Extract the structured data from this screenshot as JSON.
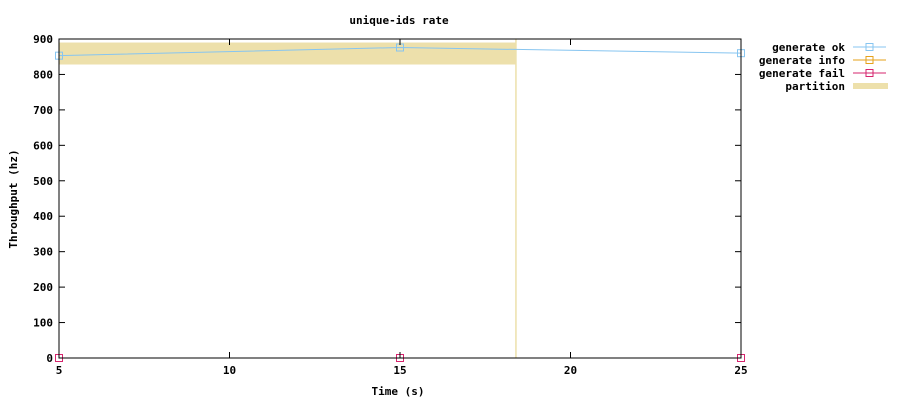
{
  "chart_data": {
    "type": "line",
    "title": "unique-ids rate",
    "xlabel": "Time (s)",
    "ylabel": "Throughput (hz)",
    "xlim": [
      5,
      25
    ],
    "ylim": [
      0,
      900
    ],
    "x_ticks": [
      "5",
      "10",
      "15",
      "20",
      "25"
    ],
    "y_ticks": [
      "0",
      "100",
      "200",
      "300",
      "400",
      "500",
      "600",
      "700",
      "800",
      "900"
    ],
    "grid": false,
    "legend_position": "outside-top-right",
    "series": [
      {
        "name": "generate ok",
        "color": "#87c5f0",
        "marker": "square",
        "points": [
          [
            5,
            853
          ],
          [
            15,
            876
          ],
          [
            25,
            860
          ]
        ]
      },
      {
        "name": "generate info",
        "color": "#e6a11a",
        "marker": "square",
        "points": []
      },
      {
        "name": "generate fail",
        "color": "#d6246d",
        "marker": "square",
        "points": [
          [
            5,
            0
          ],
          [
            15,
            0
          ],
          [
            25,
            0
          ]
        ]
      }
    ],
    "partition": {
      "name": "partition",
      "color": "#ede0ab",
      "x_start": 5,
      "x_end": 18.4,
      "y_start": 828,
      "y_end": 890,
      "line_x": 18.4
    }
  }
}
